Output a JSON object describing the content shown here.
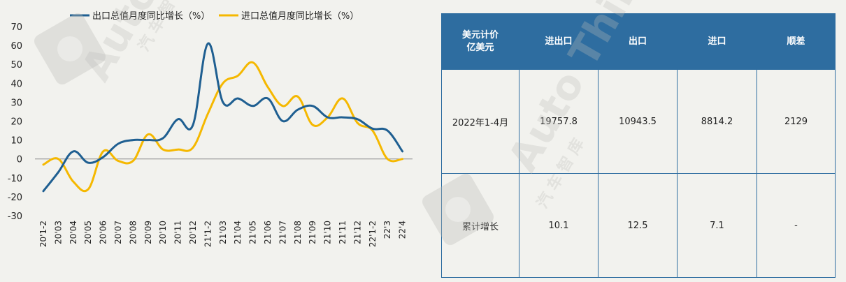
{
  "chart_data": {
    "type": "line",
    "categories": [
      "20'1-2",
      "20'03",
      "20'04",
      "20'05",
      "20'06",
      "20'07",
      "20'08",
      "20'09",
      "20'10",
      "20'11",
      "20'12",
      "21'1-2",
      "21'03",
      "21'04",
      "21'05",
      "21'06",
      "21'07",
      "21'08",
      "21'09",
      "21'10",
      "21'11",
      "21'12",
      "22'1-2",
      "22'3",
      "22'4"
    ],
    "series": [
      {
        "name": "出口总值月度同比增长（%）",
        "color": "#1f5f91",
        "values": [
          -17,
          -7,
          4,
          -2,
          1,
          8,
          10,
          10,
          11,
          21,
          18,
          61,
          30,
          32,
          28,
          32,
          20,
          26,
          28,
          22,
          22,
          21,
          16,
          15,
          4
        ]
      },
      {
        "name": "进口总值月度同比增长（%）",
        "color": "#f5b800",
        "values": [
          -3,
          0,
          -12,
          -16,
          4,
          -1,
          -1,
          13,
          5,
          5,
          6,
          24,
          40,
          44,
          51,
          38,
          28,
          33,
          18,
          22,
          32,
          19,
          15,
          0,
          0
        ]
      }
    ],
    "ylim": [
      -30,
      70
    ],
    "yticks": [
      70,
      60,
      50,
      40,
      30,
      20,
      10,
      0,
      -10,
      -20,
      -30
    ],
    "grid": false,
    "legend_position": "top"
  },
  "table": {
    "headers": [
      "美元计价\n亿美元",
      "进出口",
      "出口",
      "进口",
      "顺差"
    ],
    "rows": [
      [
        "2022年1-4月",
        "19757.8",
        "10943.5",
        "8814.2",
        "2129"
      ],
      [
        "累计增长",
        "10.1",
        "12.5",
        "7.1",
        "-"
      ]
    ],
    "header_color": "#2e6da0"
  },
  "watermark": {
    "brand": "Auto Thinker",
    "cn": "汽 车 智 库"
  }
}
